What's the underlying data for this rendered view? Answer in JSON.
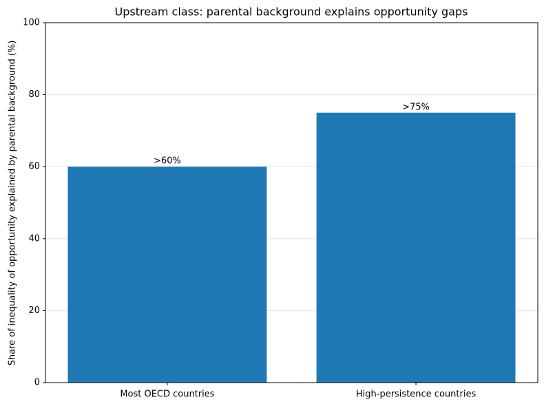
{
  "chart_data": {
    "type": "bar",
    "title": "Upstream class: parental background explains opportunity gaps",
    "ylabel": "Share of inequality of opportunity explained by parental background (%)",
    "categories": [
      "Most OECD countries",
      "High-persistence countries"
    ],
    "values": [
      60,
      75
    ],
    "value_labels": [
      ">60%",
      ">75%"
    ],
    "color": "#1f77b4",
    "ylim": [
      0,
      100
    ],
    "yticks": [
      0,
      20,
      40,
      60,
      80,
      100
    ],
    "grid": true
  }
}
